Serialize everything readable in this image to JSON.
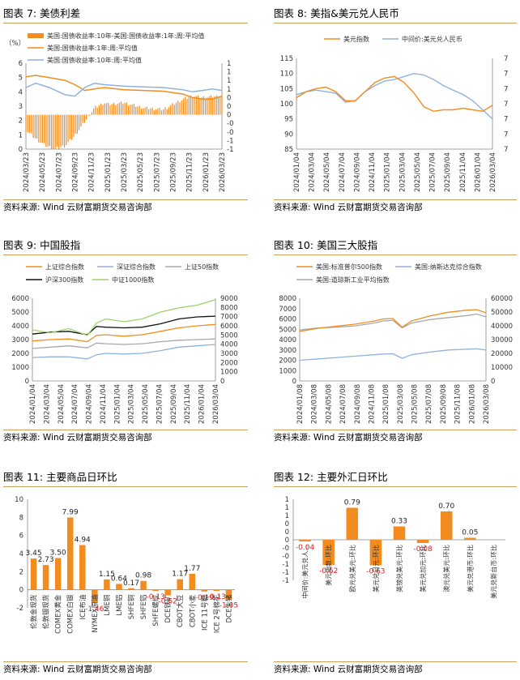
{
  "source_label": "资料来源:",
  "source_text": "Wind  云财富期货交易咨询部",
  "colors": {
    "orange": "#f28c1e",
    "blue": "#8fb2dd",
    "gray": "#a8a8a8",
    "black": "#111111",
    "green": "#9bd36a",
    "red": "#e02020",
    "rule": "#c9a15a"
  },
  "panels": [
    {
      "id": "p7",
      "title": "图表 7:   美债利差"
    },
    {
      "id": "p8",
      "title": "图表 8:   美指&美元兑人民币"
    },
    {
      "id": "p9",
      "title": "图表 9:   中国股指"
    },
    {
      "id": "p10",
      "title": "图表 10:   美国三大股指"
    },
    {
      "id": "p11",
      "title": "图表 11:   主要商品日环比"
    },
    {
      "id": "p12",
      "title": "图表 12:   主要外汇日环比"
    }
  ],
  "chart_data": [
    {
      "id": "p7",
      "type": "bar+line",
      "y_unit": "（%）",
      "yleft": [
        0,
        6
      ],
      "yleft_ticks": [
        "0",
        "1",
        "2",
        "3",
        "4",
        "5",
        "6"
      ],
      "yright": [
        -1,
        1.5
      ],
      "yright_ticks": [
        "-1",
        "-1",
        "-0",
        "-0",
        "0",
        "0",
        "0",
        "1",
        "1",
        "1",
        "1"
      ],
      "x_ticks": [
        "2024/03/23",
        "2024/05/23",
        "2024/07/23",
        "2024/09/23",
        "2024/11/23",
        "2025/01/23",
        "2025/03/23",
        "2025/05/23",
        "2025/07/23",
        "2025/09/23",
        "2025/11/23",
        "2026/01/23",
        "2026/03/23"
      ],
      "series": [
        {
          "name": "美国:国债收益率:10年-美国:国债收益率:1年:周:平均值",
          "kind": "bar",
          "axis": "right",
          "x": [
            0,
            0.05,
            0.1,
            0.15,
            0.2,
            0.25,
            0.3,
            0.35,
            0.4,
            0.42,
            0.5,
            0.6,
            0.7,
            0.8,
            0.85,
            0.9,
            1.0
          ],
          "y": [
            -0.45,
            -0.7,
            -0.9,
            -1.0,
            -0.9,
            -0.6,
            -0.2,
            0.2,
            0.35,
            0.3,
            0.35,
            0.2,
            0.15,
            0.45,
            0.55,
            0.5,
            0.55
          ]
        },
        {
          "name": "美国:国债收益率:1年:周:平均值",
          "kind": "line",
          "axis": "left",
          "x": [
            0,
            0.05,
            0.12,
            0.2,
            0.25,
            0.3,
            0.35,
            0.4,
            0.5,
            0.6,
            0.7,
            0.8,
            0.85,
            0.9,
            0.95,
            1.0
          ],
          "y": [
            5.05,
            5.15,
            5.0,
            4.8,
            4.5,
            4.1,
            4.2,
            4.3,
            4.15,
            4.1,
            4.05,
            3.85,
            3.6,
            3.5,
            3.5,
            3.7
          ]
        },
        {
          "name": "美国:国债收益率:10年:周:平均值",
          "kind": "line",
          "axis": "left",
          "x": [
            0,
            0.05,
            0.12,
            0.2,
            0.25,
            0.3,
            0.35,
            0.4,
            0.5,
            0.6,
            0.7,
            0.8,
            0.85,
            0.9,
            0.95,
            1.0
          ],
          "y": [
            4.3,
            4.6,
            4.3,
            3.8,
            3.7,
            4.3,
            4.6,
            4.5,
            4.4,
            4.35,
            4.3,
            4.15,
            4.0,
            4.1,
            4.2,
            4.1
          ]
        }
      ]
    },
    {
      "id": "p8",
      "type": "line",
      "yleft": [
        85,
        115
      ],
      "yleft_ticks": [
        "85",
        "90",
        "95",
        "100",
        "105",
        "110",
        "115"
      ],
      "yright_ticks": [
        "7",
        "7",
        "7",
        "7",
        "7",
        "7",
        "7"
      ],
      "x_ticks": [
        "2024/01/04",
        "2024/03/04",
        "2024/05/04",
        "2024/07/04",
        "2024/09/04",
        "2024/11/04",
        "2025/01/04",
        "2025/03/04",
        "2025/05/04",
        "2025/07/04",
        "2025/09/04",
        "2025/11/04",
        "2026/01/04",
        "2026/03/04"
      ],
      "series": [
        {
          "name": "美元指数",
          "x": [
            0,
            0.05,
            0.1,
            0.15,
            0.2,
            0.25,
            0.3,
            0.35,
            0.4,
            0.45,
            0.5,
            0.55,
            0.6,
            0.65,
            0.7,
            0.75,
            0.8,
            0.85,
            0.9,
            0.95,
            1.0
          ],
          "y": [
            102,
            104,
            105,
            105.5,
            104,
            101,
            101,
            104,
            107,
            108.5,
            109,
            107,
            103.5,
            99,
            97.5,
            98,
            98,
            98.5,
            98,
            97.5,
            99.5
          ]
        },
        {
          "name": "中间价:美元兑人民币",
          "x": [
            0,
            0.05,
            0.1,
            0.15,
            0.2,
            0.25,
            0.3,
            0.35,
            0.4,
            0.45,
            0.5,
            0.55,
            0.6,
            0.65,
            0.7,
            0.75,
            0.8,
            0.85,
            0.9,
            0.95,
            1.0
          ],
          "y": [
            103,
            104,
            104.5,
            104,
            103.5,
            100.5,
            101,
            104,
            106,
            107.5,
            108,
            109,
            110,
            109.5,
            108,
            106,
            104.5,
            103,
            101,
            98,
            95
          ]
        }
      ]
    },
    {
      "id": "p9",
      "type": "line",
      "yleft": [
        0,
        6000
      ],
      "yleft_ticks": [
        "0",
        "1000",
        "2000",
        "3000",
        "4000",
        "5000",
        "6000"
      ],
      "yright": [
        0,
        9000
      ],
      "yright_ticks": [
        "0",
        "1000",
        "2000",
        "3000",
        "4000",
        "5000",
        "6000",
        "7000",
        "8000",
        "9000"
      ],
      "x_ticks": [
        "2024/01/04",
        "2024/03/04",
        "2024/05/04",
        "2024/07/04",
        "2024/09/04",
        "2024/11/04",
        "2025/01/04",
        "2025/03/04",
        "2025/05/04",
        "2025/07/04",
        "2025/09/04",
        "2025/11/04",
        "2026/01/04",
        "2026/03/04"
      ],
      "series": [
        {
          "name": "上证综合指数",
          "x": [
            0,
            0.1,
            0.2,
            0.3,
            0.35,
            0.4,
            0.5,
            0.6,
            0.7,
            0.8,
            0.9,
            1.0
          ],
          "y": [
            2900,
            3000,
            3050,
            2850,
            3300,
            3350,
            3250,
            3350,
            3600,
            3850,
            4000,
            4100
          ]
        },
        {
          "name": "深证综合指数",
          "x": [
            0,
            0.1,
            0.2,
            0.3,
            0.35,
            0.4,
            0.5,
            0.6,
            0.7,
            0.8,
            0.9,
            1.0
          ],
          "y": [
            1700,
            1750,
            1750,
            1600,
            1900,
            2000,
            1950,
            2000,
            2200,
            2450,
            2550,
            2650
          ]
        },
        {
          "name": "上证50指数",
          "x": [
            0,
            0.1,
            0.2,
            0.3,
            0.35,
            0.4,
            0.5,
            0.6,
            0.7,
            0.8,
            0.9,
            1.0
          ],
          "y": [
            2350,
            2450,
            2550,
            2400,
            2750,
            2700,
            2650,
            2700,
            2850,
            2950,
            3000,
            3050
          ]
        },
        {
          "name": "沪深300指数",
          "x": [
            0,
            0.1,
            0.2,
            0.3,
            0.35,
            0.4,
            0.5,
            0.6,
            0.7,
            0.8,
            0.9,
            1.0
          ],
          "y": [
            3400,
            3550,
            3600,
            3350,
            3950,
            3900,
            3850,
            3900,
            4150,
            4500,
            4650,
            4700
          ]
        },
        {
          "name": "中证1000指数",
          "x": [
            0,
            0.1,
            0.2,
            0.3,
            0.35,
            0.4,
            0.5,
            0.6,
            0.7,
            0.8,
            0.9,
            1.0
          ],
          "y": [
            3700,
            3500,
            3800,
            3300,
            4200,
            4500,
            4300,
            4500,
            5000,
            5300,
            5500,
            5900
          ]
        }
      ]
    },
    {
      "id": "p10",
      "type": "line",
      "yleft": [
        0,
        8000
      ],
      "yleft_ticks": [
        "0",
        "1000",
        "2000",
        "3000",
        "4000",
        "5000",
        "6000",
        "7000",
        "8000"
      ],
      "yright": [
        0,
        60000
      ],
      "yright_ticks": [
        "0",
        "10000",
        "20000",
        "30000",
        "40000",
        "50000",
        "60000"
      ],
      "x_ticks": [
        "2024/01/08",
        "2024/03/08",
        "2024/05/08",
        "2024/07/08",
        "2024/09/08",
        "2024/11/08",
        "2025/01/08",
        "2025/03/08",
        "2025/05/08",
        "2025/07/08",
        "2025/09/08",
        "2025/11/08",
        "2026/01/08",
        "2026/03/08"
      ],
      "series": [
        {
          "name": "美国:标准普尔500指数",
          "x": [
            0,
            0.1,
            0.2,
            0.3,
            0.4,
            0.45,
            0.5,
            0.55,
            0.6,
            0.7,
            0.8,
            0.9,
            0.95,
            1.0
          ],
          "y": [
            4800,
            5100,
            5300,
            5500,
            5800,
            6000,
            6050,
            5200,
            5800,
            6300,
            6650,
            6850,
            6900,
            6600
          ]
        },
        {
          "name": "美国:纳斯达克综合指数",
          "x": [
            0,
            0.1,
            0.2,
            0.3,
            0.4,
            0.45,
            0.5,
            0.55,
            0.6,
            0.7,
            0.8,
            0.9,
            0.95,
            1.0
          ],
          "y": [
            15000,
            16000,
            17000,
            18000,
            19000,
            19500,
            19700,
            16500,
            19000,
            21000,
            22500,
            23000,
            23300,
            22500
          ]
        },
        {
          "name": "美国:道琼斯工业平均指数",
          "x": [
            0,
            0.1,
            0.2,
            0.3,
            0.4,
            0.45,
            0.5,
            0.55,
            0.6,
            0.7,
            0.8,
            0.9,
            0.95,
            1.0
          ],
          "y": [
            37000,
            38500,
            39000,
            40000,
            42000,
            43500,
            44000,
            38500,
            42000,
            44500,
            46000,
            47500,
            48500,
            46500
          ]
        }
      ]
    },
    {
      "id": "p11",
      "type": "bar",
      "ylim": [
        -2,
        10
      ],
      "y_ticks": [
        "-2",
        "0",
        "2",
        "4",
        "6",
        "8",
        "10"
      ],
      "categories": [
        "伦敦金现货",
        "伦敦银现货",
        "COMEX黄金",
        "COMEX白银",
        "ICE布油",
        "NYMEX原油",
        "LME铜",
        "LME铝",
        "SHFE铜",
        "SHFE铝",
        "SHFE螺纹",
        "DCE铁矿",
        "CBOT大豆",
        "CBOT小麦",
        "ICE 11号糖",
        "ICE 2号棉花",
        "DCE生猪"
      ],
      "values": [
        3.45,
        2.73,
        3.5,
        7.99,
        4.94,
        -1.46,
        1.15,
        0.64,
        0.17,
        0.98,
        -0.13,
        -0.62,
        1.17,
        1.77,
        -0.19,
        -0.13,
        -1.05
      ],
      "labels": [
        "3.45",
        "2.73",
        "3.50",
        "7.99",
        "4.94",
        "-1.46",
        "1.15",
        "0.64",
        "0.17",
        "0.98",
        "-0.13",
        "-0.62",
        "1.17",
        "1.77",
        "-0.19",
        "-0.13",
        "-1.05"
      ]
    },
    {
      "id": "p12",
      "type": "bar",
      "ylim": [
        -1,
        1
      ],
      "y_ticks": [
        "-1",
        "-1",
        "-1",
        "-0",
        "-0",
        "0",
        "0",
        "0",
        "1",
        "1",
        "1"
      ],
      "categories": [
        "中间价:美元兑人...",
        "美元指数:环比",
        "欧元兑美元:环比",
        "美元兑日元:环比",
        "英镑兑美元:环比",
        "美元兑加元:环比",
        "澳元兑美元:环比",
        "美元兑港币:环比",
        "美元兑新台币:环比"
      ],
      "values": [
        -0.04,
        -0.62,
        0.79,
        -0.63,
        0.33,
        -0.08,
        0.7,
        0.05,
        0
      ],
      "labels": [
        "-0.04",
        "-0.62",
        "0.79",
        "-0.63",
        "0.33",
        "-0.08",
        "0.70",
        "0.05",
        ""
      ]
    }
  ]
}
